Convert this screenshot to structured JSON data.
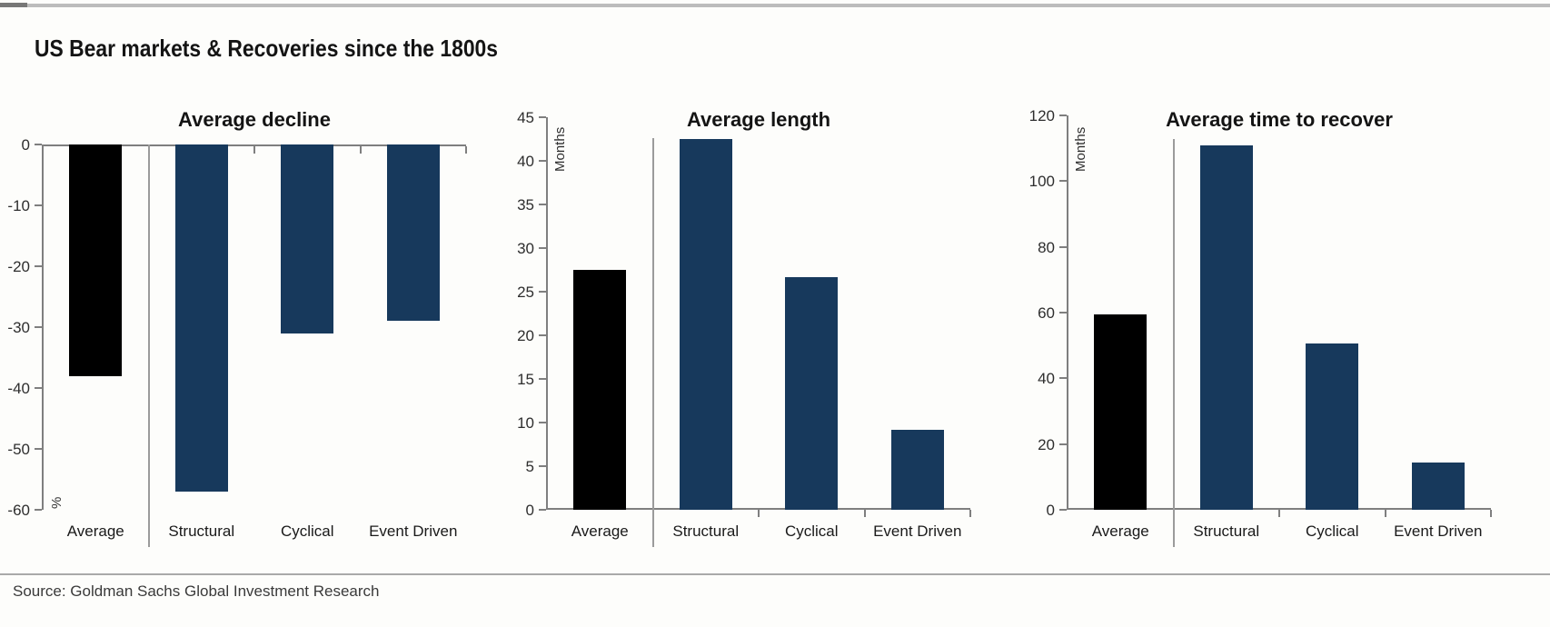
{
  "page": {
    "title": "US Bear markets & Recoveries since the 1800s",
    "source": "Source: Goldman Sachs Global Investment Research"
  },
  "colors": {
    "average_bar": "#000000",
    "type_bar": "#17395C",
    "axis": "#7f7f7f"
  },
  "chart_data": [
    {
      "type": "bar",
      "title": "Average decline",
      "ylabel": "%",
      "categories": [
        "Average",
        "Structural",
        "Cyclical",
        "Event Driven"
      ],
      "values": [
        -38,
        -57,
        -31,
        -29
      ],
      "ylim": [
        0,
        -60
      ],
      "yticks": [
        0,
        -10,
        -20,
        -30,
        -40,
        -50,
        -60
      ],
      "bar_colors": [
        "#000000",
        "#17395C",
        "#17395C",
        "#17395C"
      ],
      "grid": false,
      "legend": "none"
    },
    {
      "type": "bar",
      "title": "Average length",
      "ylabel": "Months",
      "categories": [
        "Average",
        "Structural",
        "Cyclical",
        "Event Driven"
      ],
      "values": [
        27.5,
        42.5,
        26.7,
        9.2
      ],
      "ylim": [
        0,
        45
      ],
      "yticks": [
        45,
        40,
        35,
        30,
        25,
        20,
        15,
        10,
        5,
        0
      ],
      "bar_colors": [
        "#000000",
        "#17395C",
        "#17395C",
        "#17395C"
      ],
      "grid": false,
      "legend": "none"
    },
    {
      "type": "bar",
      "title": "Average time to recover",
      "ylabel": "Months",
      "categories": [
        "Average",
        "Structural",
        "Cyclical",
        "Event Driven"
      ],
      "values": [
        59.5,
        111,
        50.5,
        14.5
      ],
      "ylim": [
        0,
        120
      ],
      "yticks": [
        120,
        100,
        80,
        60,
        40,
        20,
        0
      ],
      "bar_colors": [
        "#000000",
        "#17395C",
        "#17395C",
        "#17395C"
      ],
      "grid": false,
      "legend": "none"
    }
  ]
}
